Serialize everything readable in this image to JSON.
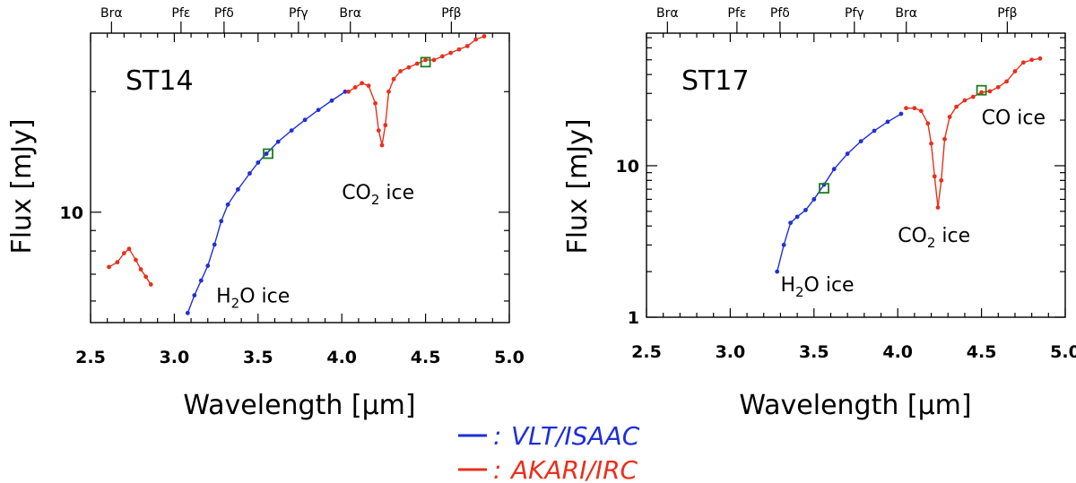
{
  "figure": {
    "x_label": "Wavelength [μm]",
    "y_label": "Flux [mJy]"
  },
  "legend": [
    {
      "marker": "–",
      "separator": ":",
      "label": "VLT/ISAAC",
      "color": "#1f2fd8"
    },
    {
      "marker": "–",
      "separator": ":",
      "label": "AKARI/IRC",
      "color": "#e8301c"
    }
  ],
  "chart_data": [
    {
      "type": "line",
      "title": "ST14",
      "xlabel": "Wavelength [μm]",
      "ylabel": "Flux [mJy]",
      "yscale": "log",
      "xlim": [
        2.5,
        5.0
      ],
      "ylim": [
        5.3,
        28.0
      ],
      "x_ticks": [
        2.5,
        3.0,
        3.5,
        4.0,
        4.5,
        5.0
      ],
      "x_tick_labels": [
        "2.5",
        "3.0",
        "3.5",
        "4.0",
        "4.5",
        "5.0"
      ],
      "y_ticks": [
        10
      ],
      "y_tick_labels": [
        "10"
      ],
      "top_lines": [
        {
          "text": "Brα",
          "x": 2.625
        },
        {
          "text": "Pfε",
          "x": 3.04
        },
        {
          "text": "Pfδ",
          "x": 3.297
        },
        {
          "text": "Pfγ",
          "x": 3.741
        },
        {
          "text": "Brα",
          "x": 4.051
        },
        {
          "text": "Pfβ",
          "x": 4.654
        }
      ],
      "annotations": [
        {
          "main": "H",
          "sub": "2",
          "rest": "O ice",
          "x": 3.25,
          "y": 5.95
        },
        {
          "main": "CO",
          "sub": "2",
          "rest": " ice",
          "x": 4.0,
          "y": 10.8
        }
      ],
      "series": [
        {
          "name": "VLT/ISAAC",
          "color": "#1f2fd8",
          "x": [
            3.08,
            3.12,
            3.16,
            3.2,
            3.24,
            3.28,
            3.32,
            3.38,
            3.45,
            3.5,
            3.55,
            3.62,
            3.7,
            3.78,
            3.86,
            3.94,
            4.02
          ],
          "y": [
            5.6,
            6.2,
            6.75,
            7.35,
            8.3,
            9.5,
            10.45,
            11.4,
            12.5,
            13.3,
            14.0,
            15.0,
            16.0,
            17.0,
            18.0,
            19.0,
            20.0
          ]
        },
        {
          "name": "AKARI/IRC",
          "color": "#e8301c",
          "x": [
            2.61,
            2.66,
            2.7,
            2.73,
            2.77,
            2.8,
            2.83,
            2.86,
            4.04,
            4.08,
            4.12,
            4.16,
            4.2,
            4.22,
            4.24,
            4.26,
            4.28,
            4.31,
            4.35,
            4.4,
            4.45,
            4.5,
            4.55,
            4.6,
            4.65,
            4.7,
            4.75,
            4.8,
            4.85
          ],
          "y": [
            7.3,
            7.5,
            7.9,
            8.1,
            7.6,
            7.2,
            6.9,
            6.6,
            20.0,
            20.5,
            21.0,
            20.7,
            18.7,
            16.0,
            14.7,
            16.5,
            20.0,
            21.5,
            22.5,
            23.0,
            23.5,
            24.0,
            24.0,
            24.5,
            25.0,
            25.5,
            26.0,
            27.0,
            27.5
          ]
        }
      ],
      "markers": [
        {
          "x": 3.56,
          "y": 14.0,
          "color": "#1e7d1e"
        },
        {
          "x": 4.5,
          "y": 23.7,
          "color": "#1e7d1e"
        }
      ]
    },
    {
      "type": "line",
      "title": "ST17",
      "xlabel": "Wavelength [μm]",
      "ylabel": "Flux [mJy]",
      "yscale": "log",
      "xlim": [
        2.5,
        5.0
      ],
      "ylim": [
        1.0,
        75.0
      ],
      "x_ticks": [
        2.5,
        3.0,
        3.5,
        4.0,
        4.5,
        5.0
      ],
      "x_tick_labels": [
        "2.5",
        "3.0",
        "3.5",
        "4.0",
        "4.5",
        "5.0"
      ],
      "y_ticks": [
        1,
        10
      ],
      "y_tick_labels": [
        "1",
        "10"
      ],
      "top_lines": [
        {
          "text": "Brα",
          "x": 2.625
        },
        {
          "text": "Pfε",
          "x": 3.04
        },
        {
          "text": "Pfδ",
          "x": 3.297
        },
        {
          "text": "Pfγ",
          "x": 3.741
        },
        {
          "text": "Brα",
          "x": 4.051
        },
        {
          "text": "Pfβ",
          "x": 4.654
        }
      ],
      "annotations": [
        {
          "main": "H",
          "sub": "2",
          "rest": "O ice",
          "x": 3.3,
          "y": 1.48
        },
        {
          "main": "CO",
          "sub": "2",
          "rest": " ice",
          "x": 4.0,
          "y": 3.15
        },
        {
          "main": "CO ice",
          "sub": "",
          "rest": "",
          "x": 4.5,
          "y": 18.8
        }
      ],
      "series": [
        {
          "name": "VLT/ISAAC",
          "color": "#1f2fd8",
          "x": [
            3.28,
            3.32,
            3.36,
            3.4,
            3.45,
            3.5,
            3.56,
            3.62,
            3.7,
            3.78,
            3.86,
            3.94,
            4.02
          ],
          "y": [
            2.0,
            3.0,
            4.2,
            4.6,
            5.1,
            6.0,
            7.5,
            9.5,
            12.0,
            14.5,
            17.0,
            19.5,
            22.0
          ]
        },
        {
          "name": "AKARI/IRC",
          "color": "#e8301c",
          "x": [
            4.05,
            4.1,
            4.14,
            4.18,
            4.2,
            4.22,
            4.24,
            4.26,
            4.28,
            4.31,
            4.35,
            4.4,
            4.45,
            4.5,
            4.55,
            4.6,
            4.65,
            4.7,
            4.75,
            4.8,
            4.85
          ],
          "y": [
            24.0,
            24.0,
            23.0,
            19.0,
            14.0,
            8.5,
            5.3,
            8.0,
            15.0,
            21.0,
            24.5,
            27.0,
            28.5,
            30.5,
            31.0,
            33.0,
            36.0,
            42.0,
            48.0,
            50.0,
            51.0
          ]
        }
      ],
      "markers": [
        {
          "x": 3.56,
          "y": 7.1,
          "color": "#1e7d1e"
        },
        {
          "x": 4.5,
          "y": 31.5,
          "color": "#1e7d1e"
        }
      ]
    }
  ]
}
